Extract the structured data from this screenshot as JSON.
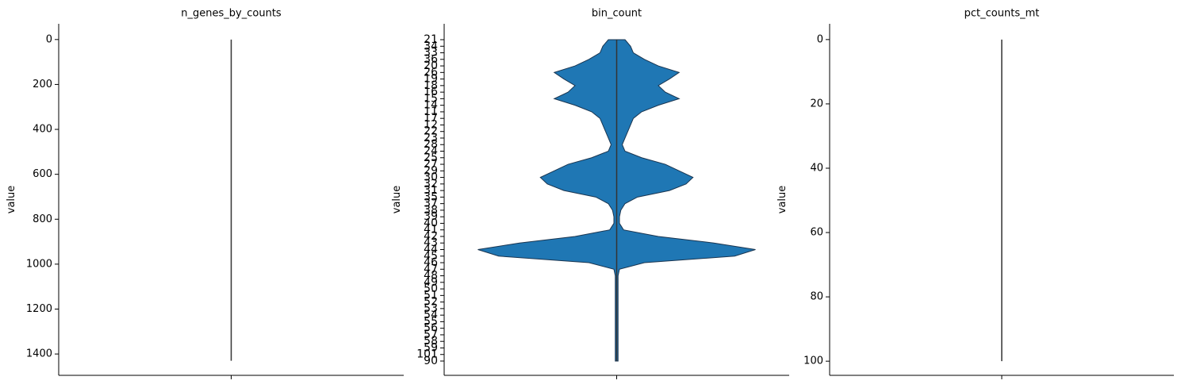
{
  "chart_data": [
    {
      "type": "violin",
      "title": "n_genes_by_counts",
      "ylabel": "value",
      "ylim": [
        -70,
        1495
      ],
      "inverted": true,
      "yticks": [
        0,
        200,
        400,
        600,
        800,
        1000,
        1200,
        1400
      ],
      "min": 0,
      "max": 1430,
      "color": "#1f77b4"
    },
    {
      "type": "category-violin",
      "title": "bin_count",
      "ylabel": "value",
      "color": "#1f77b4",
      "categories": [
        "21",
        "34",
        "33",
        "36",
        "20",
        "26",
        "19",
        "18",
        "16",
        "15",
        "14",
        "11",
        "17",
        "12",
        "22",
        "23",
        "28",
        "24",
        "25",
        "27",
        "29",
        "30",
        "32",
        "31",
        "35",
        "37",
        "38",
        "39",
        "40",
        "41",
        "42",
        "43",
        "44",
        "45",
        "46",
        "47",
        "48",
        "49",
        "50",
        "51",
        "52",
        "53",
        "54",
        "55",
        "56",
        "57",
        "58",
        "59",
        "101",
        "90"
      ],
      "density": [
        0.06,
        0.1,
        0.12,
        0.2,
        0.3,
        0.45,
        0.38,
        0.3,
        0.35,
        0.45,
        0.3,
        0.18,
        0.12,
        0.1,
        0.08,
        0.06,
        0.04,
        0.06,
        0.18,
        0.35,
        0.45,
        0.55,
        0.5,
        0.38,
        0.15,
        0.06,
        0.03,
        0.02,
        0.02,
        0.05,
        0.3,
        0.7,
        1.0,
        0.85,
        0.2,
        0.02,
        0.01,
        0.01,
        0.01,
        0.01,
        0.01,
        0.01,
        0.01,
        0.01,
        0.01,
        0.01,
        0.01,
        0.01,
        0.01,
        0.01
      ]
    },
    {
      "type": "violin",
      "title": "pct_counts_mt",
      "ylabel": "value",
      "ylim": [
        -4.9,
        104.4
      ],
      "inverted": true,
      "yticks": [
        0,
        20,
        40,
        60,
        80,
        100
      ],
      "min": 0,
      "max": 100,
      "color": "#1f77b4"
    }
  ]
}
